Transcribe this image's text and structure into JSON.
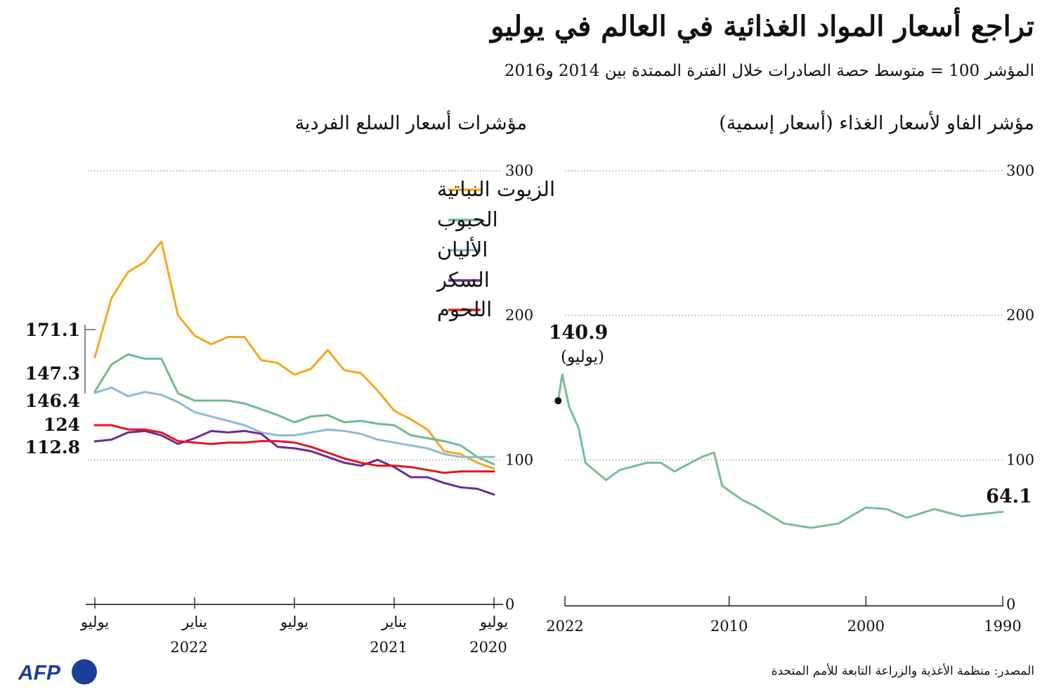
{
  "header": {
    "title": "تراجع أسعار المواد الغذائية في العالم في يوليو",
    "subtitle": "المؤشر 100 = متوسط حصة الصادرات خلال الفترة الممتدة بين 2014 و2016"
  },
  "footer": {
    "source": "المصدر: منظمة الأغذية والزراعة التابعة للأمم المتحدة",
    "logo_text": "AFP"
  },
  "colors": {
    "oils": "#f2a81d",
    "cereals": "#6fba8f",
    "dairy": "#8db9d5",
    "sugar": "#6a2a96",
    "meat": "#e3171b",
    "fao": "#74bf95"
  },
  "chart_data": [
    {
      "type": "line",
      "title": "مؤشرات أسعار السلع الفردية",
      "x": [
        "2020-07",
        "2020-08",
        "2020-09",
        "2020-10",
        "2020-11",
        "2020-12",
        "2021-01",
        "2021-02",
        "2021-03",
        "2021-04",
        "2021-05",
        "2021-06",
        "2021-07",
        "2021-08",
        "2021-09",
        "2021-10",
        "2021-11",
        "2021-12",
        "2022-01",
        "2022-02",
        "2022-03",
        "2022-04",
        "2022-05",
        "2022-06",
        "2022-07"
      ],
      "x_ticks": [
        {
          "at": "2020-07",
          "month": "يوليو",
          "year": "2020"
        },
        {
          "at": "2021-01",
          "month": "يناير",
          "year": "2021"
        },
        {
          "at": "2021-07",
          "month": "يوليو",
          "year": ""
        },
        {
          "at": "2022-01",
          "month": "يناير",
          "year": "2022"
        },
        {
          "at": "2022-07",
          "month": "يوليو",
          "year": ""
        }
      ],
      "ylim": [
        0,
        300
      ],
      "y_ticks": [
        0,
        100,
        200,
        300
      ],
      "x_direction": "right-to-left",
      "grid": "dotted horizontal at 100 and 300",
      "legend_position": "top",
      "series": [
        {
          "key": "oils",
          "name": "الزيوت النباتية",
          "values": [
            94,
            98,
            104,
            106,
            121,
            128,
            134,
            148,
            160,
            162,
            176,
            163,
            159,
            167,
            169,
            185,
            185,
            180,
            186,
            200,
            251,
            237,
            230,
            212,
            171.1
          ]
        },
        {
          "key": "cereals",
          "name": "الحبوب",
          "values": [
            97,
            102,
            110,
            113,
            115,
            117,
            124,
            125,
            127,
            126,
            131,
            130,
            126,
            131,
            135,
            139,
            141,
            141,
            141,
            146,
            170,
            170,
            173,
            166,
            147.3
          ]
        },
        {
          "key": "dairy",
          "name": "الأليان",
          "values": [
            102,
            102,
            102,
            104,
            108,
            110,
            112,
            114,
            118,
            120,
            121,
            119,
            117,
            117,
            119,
            124,
            127,
            130,
            133,
            140,
            145,
            147,
            144,
            150,
            146.4
          ]
        },
        {
          "key": "sugar",
          "name": "السكر",
          "values": [
            76,
            80,
            81,
            84,
            88,
            88,
            95,
            100,
            96,
            98,
            102,
            106,
            108,
            109,
            118,
            120,
            119,
            120,
            115,
            111,
            117,
            120,
            119,
            114,
            112.8
          ]
        },
        {
          "key": "meat",
          "name": "اللحوم",
          "values": [
            92,
            92,
            92,
            91,
            93,
            95,
            96,
            96,
            98,
            101,
            105,
            109,
            112,
            113,
            113,
            112,
            112,
            111,
            112,
            113,
            119,
            121,
            121,
            124,
            124
          ]
        }
      ],
      "end_labels": [
        "171.1",
        "147.3",
        "146.4",
        "124",
        "112.8"
      ]
    },
    {
      "type": "line",
      "title": "مؤشر الفاو لأسعار الغذاء (أسعار إسمية)",
      "series": [
        {
          "key": "fao"
        }
      ],
      "x": [
        1990,
        1993,
        1995,
        1997,
        1998.5,
        2000,
        2002,
        2004,
        2006,
        2008.2,
        2009,
        2010.5,
        2011.1,
        2012,
        2014,
        2015,
        2016,
        2018,
        2019,
        2020.5,
        2021,
        2021.7,
        2022.2,
        2022.5
      ],
      "values": [
        64.1,
        61,
        66,
        60,
        66,
        67,
        56,
        53,
        56,
        68.5,
        72,
        82,
        105,
        102,
        92,
        98,
        98,
        93,
        86,
        98,
        122,
        137,
        159,
        140.9
      ],
      "x_ticks": [
        1990,
        2000,
        2010,
        2022
      ],
      "x_direction": "right-to-left",
      "ylim": [
        0,
        300
      ],
      "y_ticks": [
        0,
        100,
        200,
        300
      ],
      "grid": "dotted horizontal at 100, 200 and 300",
      "annotations": [
        {
          "text": "140.9",
          "sub": "(يوليو)",
          "at": "end"
        },
        {
          "text": "64.1",
          "at": "start"
        }
      ]
    }
  ]
}
